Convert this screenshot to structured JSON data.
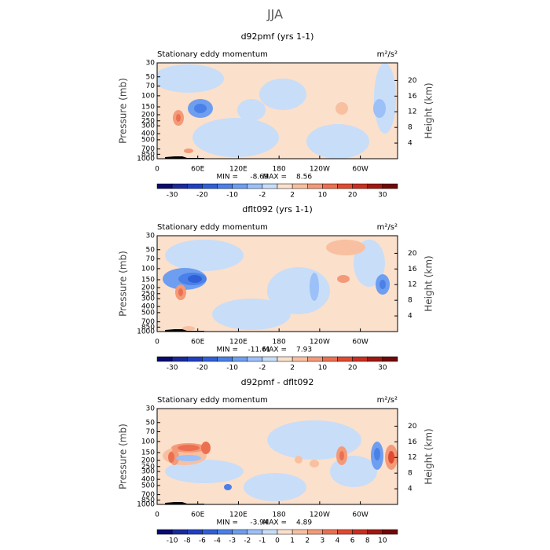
{
  "figure_title": "JJA",
  "chart_data": [
    {
      "type": "contour",
      "title": "d92pmf (yrs 1-1)",
      "subtitle": "Stationary eddy momentum",
      "units": "m²/s²",
      "ylabel": "Pressure (mb)",
      "y2label": "Height (km)",
      "log_y": true,
      "xlim": [
        0,
        355
      ],
      "xticks": [
        0,
        {
          "value": 60,
          "label": "60E"
        },
        {
          "value": 120,
          "label": "120E"
        },
        180,
        {
          "value": 240,
          "label": "120W"
        },
        {
          "value": 300,
          "label": "60W"
        }
      ],
      "ylim": [
        1000,
        30
      ],
      "yticks": [
        30,
        50,
        70,
        100,
        150,
        200,
        250,
        300,
        400,
        500,
        700,
        850,
        1000
      ],
      "y2lim": [
        0,
        24.5
      ],
      "y2ticks": [
        4,
        8,
        12,
        16,
        20
      ],
      "min_label": "MIN =",
      "min": -8.69,
      "max_label": "MAX =",
      "max": 8.56,
      "colorbar_ticks": [
        -30,
        -20,
        -10,
        -2,
        2,
        10,
        20,
        30
      ],
      "colorbar_tick_step": 2,
      "colors": [
        "#0a0a6e",
        "#1a2a9a",
        "#2040c0",
        "#3060d8",
        "#4a80e8",
        "#6e9ef0",
        "#9cc0f8",
        "#c8ddf8",
        "#fbe0cc",
        "#f8c0a0",
        "#f39a78",
        "#ec7050",
        "#e04a30",
        "#c83020",
        "#a01810",
        "#700808"
      ]
    },
    {
      "type": "contour",
      "title": "dflt092 (yrs 1-1)",
      "subtitle": "Stationary eddy momentum",
      "units": "m²/s²",
      "ylabel": "Pressure (mb)",
      "y2label": "Height (km)",
      "log_y": true,
      "xlim": [
        0,
        355
      ],
      "xticks": [
        0,
        {
          "value": 60,
          "label": "60E"
        },
        {
          "value": 120,
          "label": "120E"
        },
        180,
        {
          "value": 240,
          "label": "120W"
        },
        {
          "value": 300,
          "label": "60W"
        }
      ],
      "ylim": [
        1000,
        30
      ],
      "yticks": [
        30,
        50,
        70,
        100,
        150,
        200,
        250,
        300,
        400,
        500,
        700,
        850,
        1000
      ],
      "y2lim": [
        0,
        24.5
      ],
      "y2ticks": [
        4,
        8,
        12,
        16,
        20
      ],
      "min_label": "MIN =",
      "min": -11.61,
      "max_label": "MAX =",
      "max": 7.93,
      "colorbar_ticks": [
        -30,
        -20,
        -10,
        -2,
        2,
        10,
        20,
        30
      ],
      "colorbar_tick_step": 2,
      "colors": [
        "#0a0a6e",
        "#1a2a9a",
        "#2040c0",
        "#3060d8",
        "#4a80e8",
        "#6e9ef0",
        "#9cc0f8",
        "#c8ddf8",
        "#fbe0cc",
        "#f8c0a0",
        "#f39a78",
        "#ec7050",
        "#e04a30",
        "#c83020",
        "#a01810",
        "#700808"
      ]
    },
    {
      "type": "contour",
      "title": "d92pmf - dflt092",
      "subtitle": "Stationary eddy momentum",
      "units": "m²/s²",
      "ylabel": "Pressure (mb)",
      "y2label": "Height (km)",
      "log_y": true,
      "xlim": [
        0,
        355
      ],
      "xticks": [
        0,
        {
          "value": 60,
          "label": "60E"
        },
        {
          "value": 120,
          "label": "120E"
        },
        180,
        {
          "value": 240,
          "label": "120W"
        },
        {
          "value": 300,
          "label": "60W"
        }
      ],
      "ylim": [
        1000,
        30
      ],
      "yticks": [
        30,
        50,
        70,
        100,
        150,
        200,
        250,
        300,
        400,
        500,
        700,
        850,
        1000
      ],
      "y2lim": [
        0,
        24.5
      ],
      "y2ticks": [
        4,
        8,
        12,
        16,
        20
      ],
      "min_label": "MIN =",
      "min": -3.94,
      "max_label": "MAX =",
      "max": 4.89,
      "colorbar_ticks": [
        -10,
        -8,
        -6,
        -4,
        -3,
        -2,
        -1,
        0,
        1,
        2,
        3,
        4,
        6,
        8,
        10
      ],
      "colorbar_tick_step": 1,
      "colors": [
        "#0a0a6e",
        "#1a2a9a",
        "#2040c0",
        "#3060d8",
        "#4a80e8",
        "#6e9ef0",
        "#9cc0f8",
        "#c8ddf8",
        "#fbe0cc",
        "#f8c0a0",
        "#f39a78",
        "#ec7050",
        "#e04a30",
        "#c83020",
        "#a01810",
        "#700808"
      ]
    }
  ]
}
